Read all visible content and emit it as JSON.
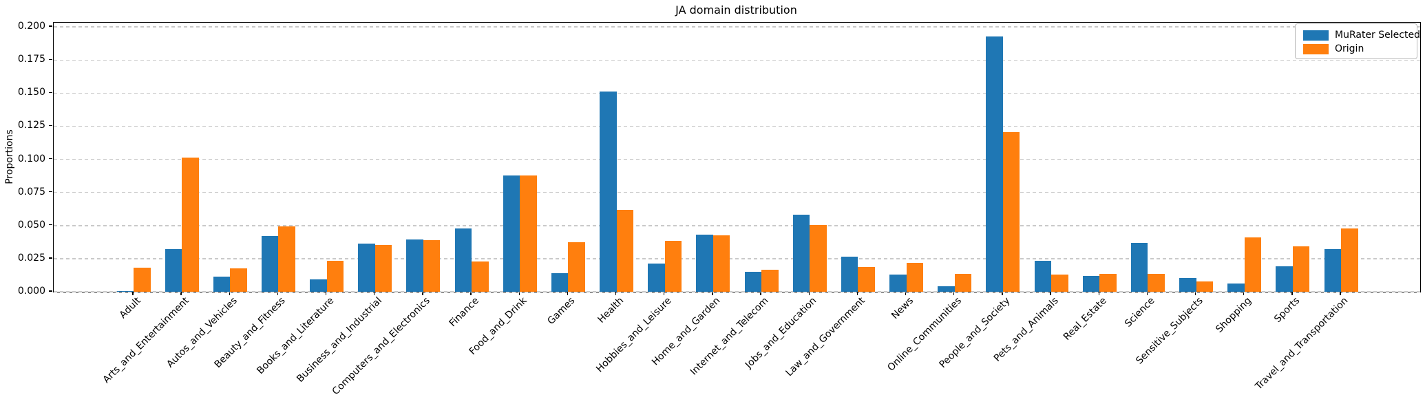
{
  "title": "JA domain distribution",
  "ylabel": "Proportions",
  "legend": {
    "items": [
      {
        "label": "MuRater Selected",
        "color": "#1f77b4"
      },
      {
        "label": "Origin",
        "color": "#ff7f0e"
      }
    ],
    "position": "upper right"
  },
  "chart_data": {
    "type": "bar",
    "title": "JA domain distribution",
    "xlabel": "",
    "ylabel": "Proportions",
    "ylim": [
      0,
      0.2032
    ],
    "grid": "horizontal dashed",
    "legend_position": "upper right",
    "ytick_labels": [
      "0.000",
      "0.025",
      "0.050",
      "0.075",
      "0.100",
      "0.125",
      "0.150",
      "0.175",
      "0.200"
    ],
    "yticks": [
      0.0,
      0.025,
      0.05,
      0.075,
      0.1,
      0.125,
      0.15,
      0.175,
      0.2
    ],
    "categories": [
      "Adult",
      "Arts_and_Entertainment",
      "Autos_and_Vehicles",
      "Beauty_and_Fitness",
      "Books_and_Literature",
      "Business_and_Industrial",
      "Computers_and_Electronics",
      "Finance",
      "Food_and_Drink",
      "Games",
      "Health",
      "Hobbies_and_Leisure",
      "Home_and_Garden",
      "Internet_and_Telecom",
      "Jobs_and_Education",
      "Law_and_Government",
      "News",
      "Online_Communities",
      "People_and_Society",
      "Pets_and_Animals",
      "Real_Estate",
      "Science",
      "Sensitive_Subjects",
      "Shopping",
      "Sports",
      "Travel_and_Transportation"
    ],
    "series": [
      {
        "name": "MuRater Selected",
        "color": "#1f77b4",
        "values": [
          0.0005,
          0.0325,
          0.0115,
          0.042,
          0.0095,
          0.0365,
          0.0395,
          0.048,
          0.088,
          0.014,
          0.151,
          0.0215,
          0.043,
          0.015,
          0.058,
          0.0265,
          0.013,
          0.004,
          0.193,
          0.0235,
          0.012,
          0.037,
          0.0105,
          0.0065,
          0.0195,
          0.0325
        ]
      },
      {
        "name": "Origin",
        "color": "#ff7f0e",
        "values": [
          0.018,
          0.1015,
          0.0175,
          0.0495,
          0.0235,
          0.0355,
          0.039,
          0.023,
          0.088,
          0.0375,
          0.062,
          0.0385,
          0.0425,
          0.0165,
          0.0505,
          0.0185,
          0.022,
          0.0135,
          0.1205,
          0.013,
          0.0135,
          0.0135,
          0.008,
          0.041,
          0.0345,
          0.048
        ]
      }
    ]
  }
}
